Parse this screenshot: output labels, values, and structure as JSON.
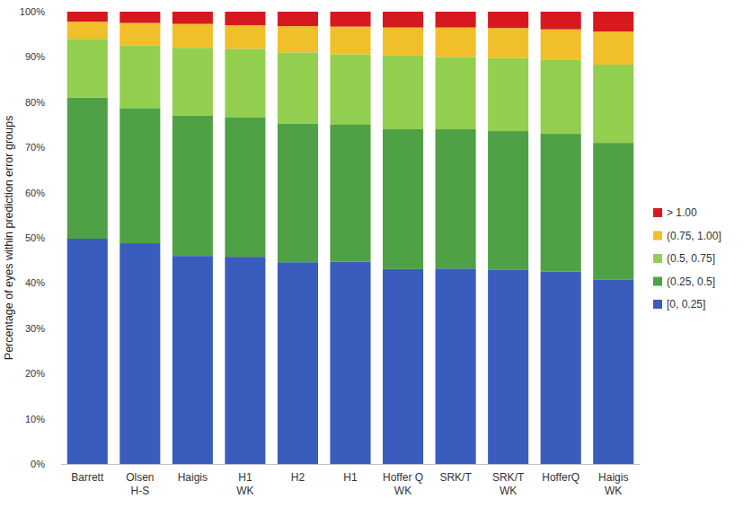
{
  "chart_data": {
    "type": "bar",
    "stacked": true,
    "legend": "right",
    "grid": false,
    "y_label": "Percentage of eyes within prediction error groups",
    "categories": [
      "Barrett",
      "Olsen H-S",
      "Haigis",
      "H1 WK",
      "H2",
      "H1",
      "Hoffer Q WK",
      "SRK/T",
      "SRK/T WK",
      "HofferQ",
      "Haigis WK"
    ],
    "ylim": [
      0,
      100
    ],
    "yticks": [
      {
        "value": 0,
        "label": "0%"
      },
      {
        "value": 10,
        "label": "10%"
      },
      {
        "value": 20,
        "label": "20%"
      },
      {
        "value": 30,
        "label": "30%"
      },
      {
        "value": 40,
        "label": "40%"
      },
      {
        "value": 50,
        "label": "50%"
      },
      {
        "value": 60,
        "label": "60%"
      },
      {
        "value": 70,
        "label": "70%"
      },
      {
        "value": 80,
        "label": "80%"
      },
      {
        "value": 90,
        "label": "90%"
      },
      {
        "value": 100,
        "label": "100%"
      }
    ],
    "series": [
      {
        "name": "[0, 0.25]",
        "color": "#3a5cbd",
        "values": [
          49.8,
          48.8,
          46.0,
          45.8,
          44.6,
          44.7,
          43.1,
          43.2,
          43.0,
          42.5,
          40.7
        ]
      },
      {
        "name": "(0.25, 0.5]",
        "color": "#4fa146",
        "values": [
          31.2,
          29.9,
          31.0,
          30.8,
          30.7,
          30.3,
          30.9,
          30.8,
          30.6,
          30.5,
          30.3
        ]
      },
      {
        "name": "(0.5, 0.75]",
        "color": "#93cf4f",
        "values": [
          13.0,
          13.8,
          15.0,
          15.2,
          15.7,
          15.6,
          16.3,
          16.0,
          16.2,
          16.3,
          17.3
        ]
      },
      {
        "name": "(0.75, 1.00]",
        "color": "#f0bf2a",
        "values": [
          3.8,
          5.0,
          5.3,
          5.2,
          5.8,
          6.1,
          6.2,
          6.5,
          6.6,
          6.8,
          7.3
        ]
      },
      {
        "name": "> 1.00",
        "color": "#d7191f",
        "values": [
          2.2,
          2.5,
          2.7,
          3.0,
          3.2,
          3.3,
          3.5,
          3.5,
          3.6,
          3.9,
          4.4
        ]
      }
    ]
  }
}
